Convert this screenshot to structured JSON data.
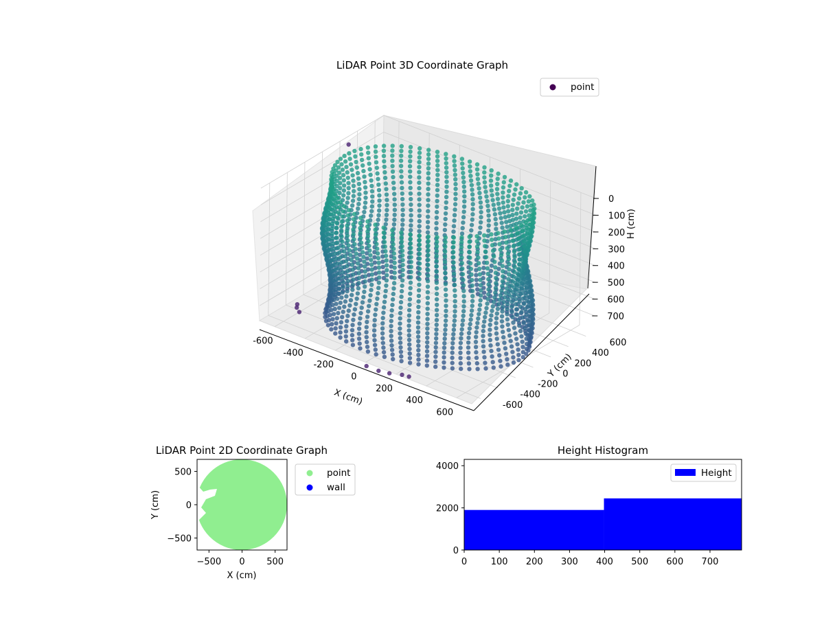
{
  "chart_data": [
    {
      "type": "scatter",
      "projection": "3d",
      "title": "LiDAR Point 3D Coordinate Graph",
      "xlabel": "X (cm)",
      "ylabel": "Y (cm)",
      "zlabel": "H (cm)",
      "xlim": [
        -700,
        700
      ],
      "ylim": [
        -700,
        700
      ],
      "zlim": [
        0,
        790
      ],
      "z_inverted": true,
      "xticks": [
        "-600",
        "-400",
        "-200",
        "0",
        "200",
        "400",
        "600"
      ],
      "yticks": [
        "-600",
        "-400",
        "-200",
        "0",
        "200",
        "400",
        "600"
      ],
      "zticks": [
        "0",
        "100",
        "200",
        "300",
        "400",
        "500",
        "600",
        "700"
      ],
      "colormap": "viridis",
      "grid": true,
      "legend": {
        "position": "top-right",
        "entries": [
          {
            "label": "point",
            "color": "#440154"
          }
        ]
      },
      "series": [
        {
          "name": "point",
          "structure": "cylindrical wall of radius ~580 cm spanning H 0-790 cm, stacked ring rows every ~30 cm",
          "outliers": [
            {
              "x": -660,
              "y": -340,
              "h": 790
            },
            {
              "x": -640,
              "y": -380,
              "h": 790
            },
            {
              "x": -600,
              "y": -420,
              "h": 790
            },
            {
              "x": 40,
              "y": -760,
              "h": 780
            },
            {
              "x": 120,
              "y": -760,
              "h": 780
            },
            {
              "x": 180,
              "y": -740,
              "h": 780
            },
            {
              "x": 240,
              "y": -700,
              "h": 780
            },
            {
              "x": 280,
              "y": -690,
              "h": 780
            },
            {
              "x": -700,
              "y": 300,
              "h": 50
            }
          ]
        }
      ]
    },
    {
      "type": "scatter",
      "title": "LiDAR Point 2D Coordinate Graph",
      "xlabel": "X (cm)",
      "ylabel": "Y (cm)",
      "xlim": [
        -680,
        680
      ],
      "ylim": [
        -680,
        680
      ],
      "xticks": [
        "−500",
        "0",
        "500"
      ],
      "yticks": [
        "−500",
        "0",
        "500"
      ],
      "legend": {
        "position": "outside-right",
        "entries": [
          {
            "label": "point",
            "color": "#90ee90"
          },
          {
            "label": "wall",
            "color": "#0000ff"
          }
        ]
      },
      "series": [
        {
          "name": "point",
          "color": "#90ee90",
          "shape": "disc of radius ~670 cm with gap near x=-500..-300, y=100..230"
        },
        {
          "name": "wall",
          "color": "#0000ff",
          "points": []
        }
      ]
    },
    {
      "type": "bar",
      "title": "Height Histogram",
      "xlabel": "",
      "ylabel": "",
      "xlim": [
        0,
        790
      ],
      "ylim": [
        0,
        4300
      ],
      "xticks": [
        "0",
        "100",
        "200",
        "300",
        "400",
        "500",
        "600",
        "700"
      ],
      "yticks": [
        "0",
        "2000",
        "4000"
      ],
      "legend": {
        "position": "top-right",
        "entries": [
          {
            "label": "Height",
            "color": "#0000ff"
          }
        ]
      },
      "series": [
        {
          "name": "Height",
          "color": "#0000ff",
          "bins": [
            {
              "from": 0,
              "to": 398,
              "count": 1900
            },
            {
              "from": 398,
              "to": 790,
              "count": 2450
            }
          ]
        }
      ]
    }
  ]
}
